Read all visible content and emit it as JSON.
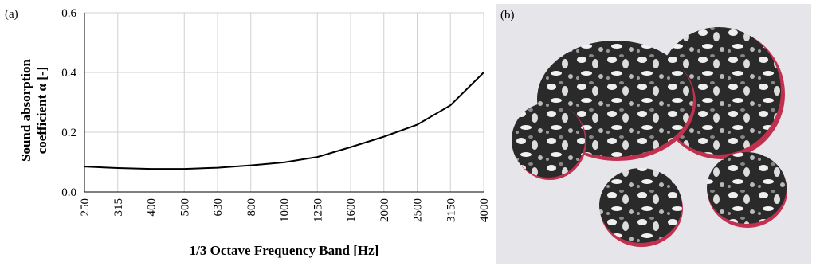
{
  "panels": {
    "a": "(a)",
    "b": "(b)"
  },
  "chart_data": {
    "type": "line",
    "ylabel": [
      "Sound absorption",
      "coefficient α [-]"
    ],
    "xlabel": "1/3 Octave Frequency Band [Hz]",
    "categories": [
      "250",
      "315",
      "400",
      "500",
      "630",
      "800",
      "1000",
      "1250",
      "1600",
      "2000",
      "2500",
      "3150",
      "4000"
    ],
    "values": [
      0.085,
      0.08,
      0.077,
      0.077,
      0.081,
      0.089,
      0.099,
      0.117,
      0.15,
      0.185,
      0.225,
      0.29,
      0.4
    ],
    "color": "#000000",
    "ylim": [
      0,
      0.6
    ],
    "yticks": [
      {
        "value": 0,
        "label": "0.0"
      },
      0.2,
      0.4,
      0.6
    ],
    "grid": true
  }
}
